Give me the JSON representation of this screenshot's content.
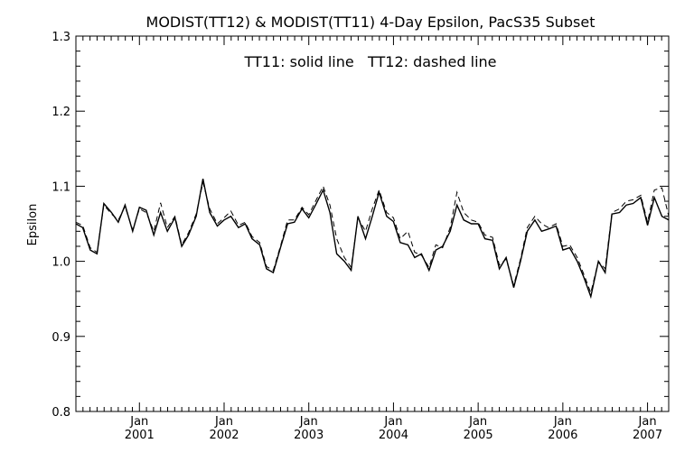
{
  "chart_data": {
    "type": "line",
    "title": "MODIST(TT12) & MODIST(TT11) 4-Day Epsilon, PacS35 Subset",
    "annotation": "TT11: solid line   TT12: dashed line",
    "ylabel": "Epsilon",
    "xlabel": "",
    "ylim": [
      0.8,
      1.3
    ],
    "xlim": [
      2000.25,
      2007.25
    ],
    "y_ticks": [
      "0.8",
      "0.9",
      "1.0",
      "1.1",
      "1.2",
      "1.3"
    ],
    "x_ticks": [
      {
        "month": "Jan",
        "year": "2001"
      },
      {
        "month": "Jan",
        "year": "2002"
      },
      {
        "month": "Jan",
        "year": "2003"
      },
      {
        "month": "Jan",
        "year": "2004"
      },
      {
        "month": "Jan",
        "year": "2005"
      },
      {
        "month": "Jan",
        "year": "2006"
      },
      {
        "month": "Jan",
        "year": "2007"
      }
    ],
    "grid": false,
    "series": [
      {
        "name": "TT11",
        "style": "solid",
        "x": [
          2000.25,
          2000.33,
          2000.42,
          2000.5,
          2000.58,
          2000.67,
          2000.75,
          2000.83,
          2000.92,
          2001.0,
          2001.08,
          2001.17,
          2001.25,
          2001.33,
          2001.42,
          2001.5,
          2001.58,
          2001.67,
          2001.75,
          2001.83,
          2001.92,
          2002.0,
          2002.08,
          2002.17,
          2002.25,
          2002.33,
          2002.42,
          2002.5,
          2002.58,
          2002.67,
          2002.75,
          2002.83,
          2002.92,
          2003.0,
          2003.08,
          2003.17,
          2003.25,
          2003.33,
          2003.42,
          2003.5,
          2003.58,
          2003.67,
          2003.75,
          2003.83,
          2003.92,
          2004.0,
          2004.08,
          2004.17,
          2004.25,
          2004.33,
          2004.42,
          2004.5,
          2004.58,
          2004.67,
          2004.75,
          2004.83,
          2004.92,
          2005.0,
          2005.08,
          2005.17,
          2005.25,
          2005.33,
          2005.42,
          2005.5,
          2005.58,
          2005.67,
          2005.75,
          2005.83,
          2005.92,
          2006.0,
          2006.08,
          2006.17,
          2006.25,
          2006.33,
          2006.42,
          2006.5,
          2006.58,
          2006.67,
          2006.75,
          2006.83,
          2006.92,
          2007.0,
          2007.08,
          2007.17,
          2007.25
        ],
        "y": [
          1.05,
          1.045,
          1.015,
          1.01,
          1.077,
          1.065,
          1.052,
          1.075,
          1.04,
          1.072,
          1.068,
          1.035,
          1.065,
          1.04,
          1.058,
          1.02,
          1.035,
          1.06,
          1.11,
          1.065,
          1.047,
          1.055,
          1.06,
          1.045,
          1.05,
          1.03,
          1.022,
          0.99,
          0.985,
          1.02,
          1.05,
          1.052,
          1.07,
          1.058,
          1.075,
          1.095,
          1.065,
          1.01,
          1.0,
          0.988,
          1.06,
          1.03,
          1.06,
          1.092,
          1.06,
          1.053,
          1.025,
          1.022,
          1.005,
          1.01,
          0.988,
          1.015,
          1.02,
          1.04,
          1.075,
          1.055,
          1.05,
          1.05,
          1.03,
          1.028,
          0.99,
          1.005,
          0.965,
          1.0,
          1.04,
          1.055,
          1.04,
          1.043,
          1.047,
          1.015,
          1.018,
          1.0,
          0.978,
          0.953,
          1.0,
          0.985,
          1.063,
          1.065,
          1.075,
          1.077,
          1.085,
          1.048,
          1.085,
          1.06,
          1.055
        ]
      },
      {
        "name": "TT12",
        "style": "dashed",
        "x": [
          2000.25,
          2000.33,
          2000.42,
          2000.5,
          2000.58,
          2000.67,
          2000.75,
          2000.83,
          2000.92,
          2001.0,
          2001.08,
          2001.17,
          2001.25,
          2001.33,
          2001.42,
          2001.5,
          2001.58,
          2001.67,
          2001.75,
          2001.83,
          2001.92,
          2002.0,
          2002.08,
          2002.17,
          2002.25,
          2002.33,
          2002.42,
          2002.5,
          2002.58,
          2002.67,
          2002.75,
          2002.83,
          2002.92,
          2003.0,
          2003.08,
          2003.17,
          2003.25,
          2003.33,
          2003.42,
          2003.5,
          2003.58,
          2003.67,
          2003.75,
          2003.83,
          2003.92,
          2004.0,
          2004.08,
          2004.17,
          2004.25,
          2004.33,
          2004.42,
          2004.5,
          2004.58,
          2004.67,
          2004.75,
          2004.83,
          2004.92,
          2005.0,
          2005.08,
          2005.17,
          2005.25,
          2005.33,
          2005.42,
          2005.5,
          2005.58,
          2005.67,
          2005.75,
          2005.83,
          2005.92,
          2006.0,
          2006.08,
          2006.17,
          2006.25,
          2006.33,
          2006.42,
          2006.5,
          2006.58,
          2006.67,
          2006.75,
          2006.83,
          2006.92,
          2007.0,
          2007.08,
          2007.17,
          2007.25
        ],
        "y": [
          1.052,
          1.048,
          1.018,
          1.012,
          1.075,
          1.063,
          1.055,
          1.073,
          1.042,
          1.07,
          1.065,
          1.04,
          1.078,
          1.045,
          1.06,
          1.022,
          1.038,
          1.063,
          1.105,
          1.07,
          1.05,
          1.058,
          1.067,
          1.048,
          1.052,
          1.033,
          1.025,
          0.993,
          0.988,
          1.022,
          1.055,
          1.055,
          1.072,
          1.062,
          1.08,
          1.1,
          1.075,
          1.03,
          1.005,
          0.992,
          1.058,
          1.04,
          1.07,
          1.095,
          1.065,
          1.058,
          1.03,
          1.04,
          1.012,
          1.008,
          0.992,
          1.022,
          1.018,
          1.045,
          1.092,
          1.065,
          1.055,
          1.052,
          1.035,
          1.032,
          0.995,
          1.003,
          0.968,
          1.003,
          1.045,
          1.06,
          1.05,
          1.045,
          1.05,
          1.02,
          1.022,
          1.005,
          0.982,
          0.958,
          1.0,
          0.99,
          1.065,
          1.07,
          1.08,
          1.082,
          1.088,
          1.052,
          1.095,
          1.098,
          1.06
        ]
      }
    ]
  }
}
